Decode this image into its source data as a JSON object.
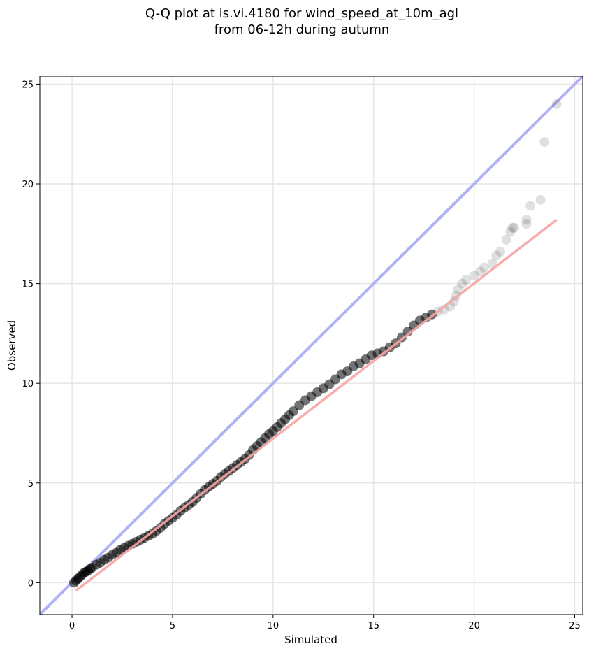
{
  "chart_data": {
    "type": "scatter",
    "title": "Q-Q plot at is.vi.4180 for wind_speed_at_10m_agl",
    "subtitle": "from 06-12h during autumn",
    "xlabel": "Simulated",
    "ylabel": "Observed",
    "xlim": [
      -1.6,
      25.4
    ],
    "ylim": [
      -1.6,
      25.4
    ],
    "xticks": [
      0,
      5,
      10,
      15,
      20,
      25
    ],
    "yticks": [
      0,
      5,
      10,
      15,
      20,
      25
    ],
    "grid": true,
    "colors": {
      "points": "#000000",
      "identity_line": "#a9aaf4",
      "fit_line": "#f5a4a4",
      "grid": "#e6e6e6"
    },
    "identity_line": {
      "x": [
        -1.6,
        25.4
      ],
      "y": [
        -1.6,
        25.4
      ]
    },
    "fit_line": {
      "x": [
        0.2,
        24.1
      ],
      "y": [
        -0.4,
        18.2
      ]
    },
    "quantiles": {
      "x": [
        0.1,
        0.2,
        0.3,
        0.4,
        0.5,
        0.6,
        0.7,
        0.8,
        0.9,
        1.0,
        1.2,
        1.4,
        1.6,
        1.8,
        2.0,
        2.2,
        2.4,
        2.6,
        2.8,
        3.0,
        3.2,
        3.4,
        3.6,
        3.8,
        4.0,
        4.2,
        4.4,
        4.6,
        4.8,
        5.0,
        5.2,
        5.4,
        5.6,
        5.8,
        6.0,
        6.2,
        6.4,
        6.6,
        6.8,
        7.0,
        7.2,
        7.4,
        7.6,
        7.8,
        8.0,
        8.2,
        8.4,
        8.6,
        8.8,
        9.0,
        9.2,
        9.4,
        9.6,
        9.8,
        10.0,
        10.2,
        10.4,
        10.6,
        10.8,
        11.0,
        11.3,
        11.6,
        11.9,
        12.2,
        12.5,
        12.8,
        13.1,
        13.4,
        13.7,
        14.0,
        14.3,
        14.6,
        14.9,
        15.2,
        15.5,
        15.8,
        16.1,
        16.4,
        16.7,
        17.0,
        17.3,
        17.6,
        17.9,
        18.2,
        18.5,
        18.8,
        19.0,
        19.1,
        19.2,
        19.4,
        19.6,
        20.0,
        20.3,
        20.5,
        20.9,
        21.1,
        21.3,
        21.6,
        21.8,
        21.9,
        22.0,
        22.6,
        22.6,
        22.8,
        23.3,
        23.5,
        24.1
      ],
      "y": [
        0.0,
        0.1,
        0.2,
        0.3,
        0.4,
        0.5,
        0.55,
        0.6,
        0.7,
        0.75,
        0.9,
        1.0,
        1.15,
        1.25,
        1.4,
        1.5,
        1.65,
        1.75,
        1.85,
        1.95,
        2.05,
        2.15,
        2.25,
        2.35,
        2.45,
        2.6,
        2.75,
        2.95,
        3.1,
        3.25,
        3.4,
        3.6,
        3.75,
        3.9,
        4.05,
        4.25,
        4.45,
        4.65,
        4.8,
        4.95,
        5.1,
        5.3,
        5.45,
        5.6,
        5.75,
        5.9,
        6.05,
        6.2,
        6.4,
        6.65,
        6.85,
        7.05,
        7.25,
        7.45,
        7.6,
        7.8,
        8.0,
        8.2,
        8.4,
        8.6,
        8.9,
        9.15,
        9.35,
        9.55,
        9.75,
        9.95,
        10.2,
        10.45,
        10.6,
        10.85,
        11.0,
        11.2,
        11.4,
        11.5,
        11.6,
        11.8,
        12.0,
        12.3,
        12.6,
        12.9,
        13.15,
        13.3,
        13.45,
        13.6,
        13.7,
        13.85,
        14.1,
        14.4,
        14.7,
        15.0,
        15.2,
        15.4,
        15.6,
        15.8,
        16.0,
        16.4,
        16.6,
        17.2,
        17.6,
        17.8,
        17.8,
        18.0,
        18.2,
        18.9,
        19.2,
        22.1,
        24.0
      ]
    }
  }
}
